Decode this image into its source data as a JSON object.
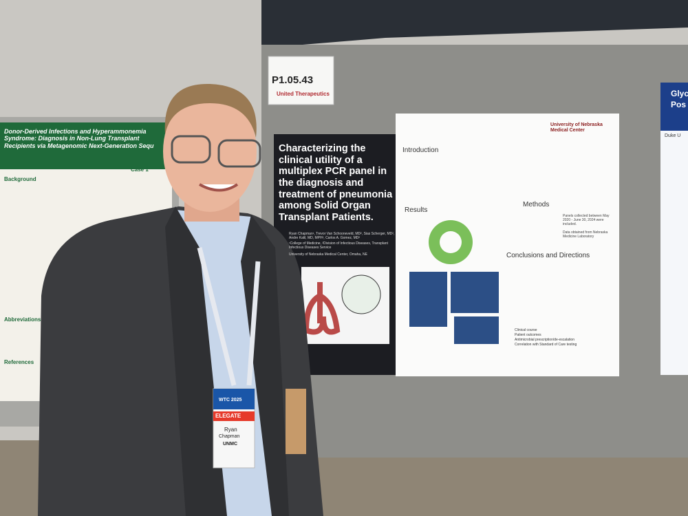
{
  "poster_number": {
    "number": "P1.05.43",
    "sponsor": "United Therapeutics"
  },
  "main_poster": {
    "title": "Characterizing the clinical utility of a multiplex PCR panel in the diagnosis and treatment of pneumonia among Solid Organ Transplant Patients.",
    "authors": "Ryan Chapman¹, Trevor Van Schooneveld, MD², Sias Scherger, MD², Andre Kalil, MD, MPH², Carlos A. Gomez, MD²",
    "affiliations": "¹College of Medicine, ²Division of Infectious Diseases, Transplant Infectious Diseases Service",
    "location": "University of Nebraska Medical Center, Omaha, NE",
    "institution": "University of Nebraska Medical Center",
    "sections": [
      "Introduction",
      "Results",
      "Methods",
      "Conclusions and Directions"
    ],
    "methods_text": "Panels collected between May 2020 - June 30, 2024 were included.",
    "methods_source": "Data obtained from Nebraska Medicine Laboratory",
    "conclusion_items": [
      "Clinical course",
      "Patient outcomes",
      "Antimicrobial prescription/de-escalation",
      "Correlation with Standard of Care testing"
    ]
  },
  "left_poster": {
    "title": "Donor-Derived Infections and Hyperammonemia Syndrome: Diagnosis in Non-Lung Transplant Recipients via Metagenomic Next-Generation Sequ",
    "sections": [
      "Background",
      "Case 1",
      "Abbreviations",
      "References"
    ]
  },
  "right_poster": {
    "title_lines": [
      "Glyc",
      "Pos"
    ],
    "affiliation": "Duke U"
  },
  "badge": {
    "event": "WTC 2025",
    "role": "ELEGATE",
    "first_name": "Ryan",
    "last_name": "Chapman",
    "organization": "UNMC"
  }
}
